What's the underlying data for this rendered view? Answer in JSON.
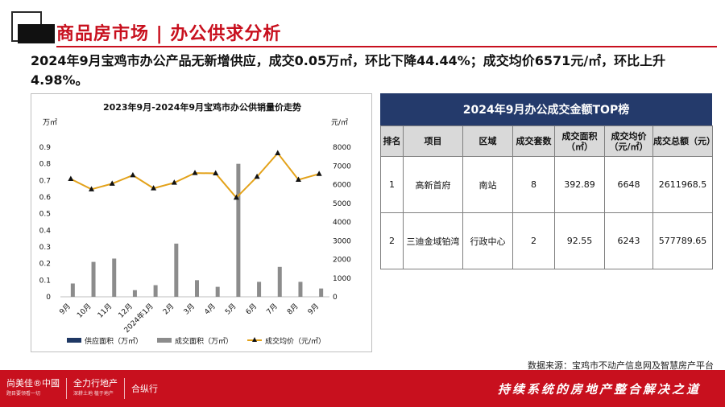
{
  "header": {
    "title": "商品房市场 | 办公供求分析"
  },
  "summary": {
    "text": "2024年9月宝鸡市办公产品无新增供应，成交0.05万㎡，环比下降44.44%；成交均价6571元/㎡，环比上升4.98%。"
  },
  "chart_data": {
    "type": "bar+line",
    "title": "2023年9月-2024年9月宝鸡市办公供销量价走势",
    "left_unit": "万㎡",
    "right_unit": "元/㎡",
    "categories": [
      "9月",
      "10月",
      "11月",
      "12月",
      "2024年1月",
      "2月",
      "3月",
      "4月",
      "5月",
      "6月",
      "7月",
      "8月",
      "9月"
    ],
    "left_axis": {
      "min": 0,
      "max": 0.9,
      "ticks": [
        "0",
        "0.1",
        "0.2",
        "0.3",
        "0.4",
        "0.5",
        "0.6",
        "0.7",
        "0.8",
        "0.9"
      ]
    },
    "right_axis": {
      "min": 0,
      "max": 8000,
      "ticks": [
        "0",
        "1000",
        "2000",
        "3000",
        "4000",
        "5000",
        "6000",
        "7000",
        "8000"
      ]
    },
    "series": [
      {
        "name": "供应面积（万㎡）",
        "type": "bar",
        "axis": "left",
        "color": "#1f3864",
        "values": [
          0,
          0,
          0,
          0,
          0,
          0,
          0,
          0,
          0,
          0,
          0,
          0,
          0
        ]
      },
      {
        "name": "成交面积（万㎡）",
        "type": "bar",
        "axis": "left",
        "color": "#8c8c8c",
        "values": [
          0.08,
          0.21,
          0.23,
          0.04,
          0.07,
          0.32,
          0.1,
          0.06,
          0.8,
          0.09,
          0.18,
          0.09,
          0.05
        ]
      },
      {
        "name": "成交均价（元/㎡）",
        "type": "line",
        "axis": "right",
        "color": "#e3a21a",
        "values": [
          6300,
          5750,
          6050,
          6500,
          5800,
          6100,
          6620,
          6600,
          5300,
          6420,
          7680,
          6260,
          6571
        ]
      }
    ],
    "legend": "bottom"
  },
  "table": {
    "title": "2024年9月办公成交金额TOP榜",
    "headers": [
      "排名",
      "项目",
      "区域",
      "成交套数",
      "成交面积（㎡）",
      "成交均价（元/㎡）",
      "成交总额（元）"
    ],
    "rows": [
      [
        "1",
        "高新首府",
        "南站",
        "8",
        "392.89",
        "6648",
        "2611968.5"
      ],
      [
        "2",
        "三迪金域铂湾",
        "行政中心",
        "2",
        "92.55",
        "6243",
        "577789.65"
      ]
    ]
  },
  "source": "数据来源：宝鸡市不动产信息网及智慧房产平台",
  "footer": {
    "logo1": "尚美佳®中國",
    "logo1_sub": "题目要领看一切",
    "logo2": "全力行地产",
    "logo2_sub": "深耕土地  植于地产",
    "logo3": "合纵行",
    "slogan": "持续系统的房地产整合解决之道"
  },
  "colors": {
    "brand_red": "#c8101e",
    "table_header_blue": "#243a6b"
  }
}
